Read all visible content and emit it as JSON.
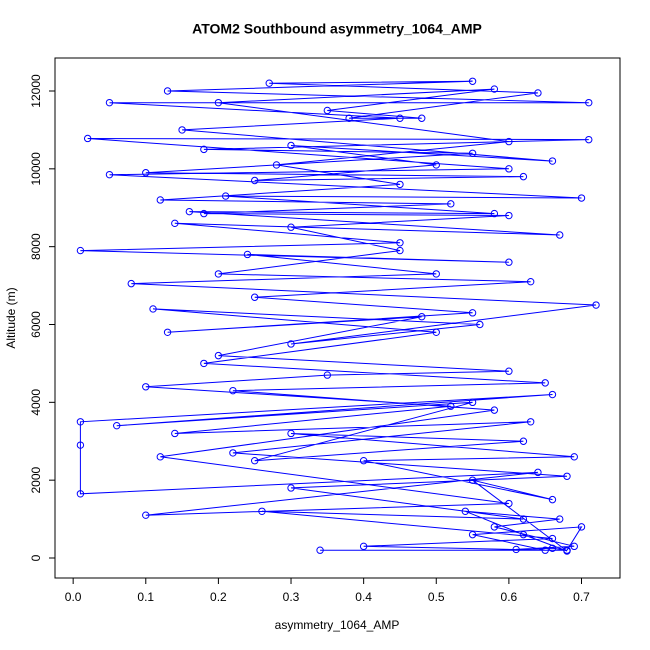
{
  "chart_data": {
    "type": "line",
    "markers": true,
    "title": "ATOM2 Southbound asymmetry_1064_AMP",
    "x_label": "asymmetry_1064_AMP",
    "y_label": "Altitude (m)",
    "color": "#0000ff",
    "xlim": [
      -0.025,
      0.753
    ],
    "ylim": [
      -514,
      12848
    ],
    "xticks": [
      {
        "value": 0,
        "label": "0.0"
      },
      0.1,
      0.2,
      0.3,
      0.4,
      0.5,
      0.6,
      0.7
    ],
    "yticks": [
      0,
      2000,
      4000,
      6000,
      8000,
      10000,
      12000
    ],
    "x": [
      0.34,
      0.68,
      0.66,
      0.61,
      0.69,
      0.58,
      0.67,
      0.54,
      0.62,
      0.68,
      0.55,
      0.66,
      0.4,
      0.69,
      0.3,
      0.62,
      0.25,
      0.55,
      0.06,
      0.66,
      0.01,
      0.01,
      0.01,
      0.64,
      0.1,
      0.6,
      0.12,
      0.58,
      0.22,
      0.65,
      0.18,
      0.5,
      0.11,
      0.56,
      0.3,
      0.72,
      0.08,
      0.5,
      0.24,
      0.6,
      0.01,
      0.45,
      0.14,
      0.67,
      0.16,
      0.58,
      0.21,
      0.7,
      0.05,
      0.6,
      0.02,
      0.71,
      0.18,
      0.55,
      0.1,
      0.62,
      0.25,
      0.5,
      0.3,
      0.66,
      0.15,
      0.45,
      0.05,
      0.71,
      0.13,
      0.55,
      0.27,
      0.64,
      0.38,
      0.48,
      0.35,
      0.58,
      0.2,
      0.6,
      0.28,
      0.45,
      0.12,
      0.52,
      0.18,
      0.6,
      0.3,
      0.45,
      0.2,
      0.63,
      0.25,
      0.55,
      0.13,
      0.48,
      0.2,
      0.6,
      0.35,
      0.1,
      0.52,
      0.14,
      0.63,
      0.22,
      0.68,
      0.3,
      0.62,
      0.26,
      0.66,
      0.4,
      0.65,
      0.55,
      0.7,
      0.68
    ],
    "values": [
      200,
      200,
      250,
      220,
      300,
      800,
      1000,
      1200,
      600,
      180,
      2000,
      1500,
      2500,
      2600,
      3200,
      3000,
      2500,
      4000,
      3400,
      4200,
      3500,
      2900,
      1650,
      2200,
      1100,
      1400,
      2600,
      3800,
      4300,
      4500,
      5000,
      5800,
      6400,
      6000,
      5500,
      6500,
      7050,
      7300,
      7800,
      7600,
      7900,
      8100,
      8600,
      8300,
      8900,
      8850,
      9300,
      9250,
      9850,
      10000,
      10780,
      10750,
      10500,
      10400,
      9900,
      9800,
      9700,
      10100,
      10600,
      10200,
      11000,
      11300,
      11700,
      11700,
      12000,
      12250,
      12200,
      11950,
      11300,
      11300,
      11500,
      12050,
      11700,
      10700,
      10100,
      9600,
      9200,
      9100,
      8850,
      8800,
      8500,
      7900,
      7300,
      7100,
      6700,
      6300,
      5800,
      6200,
      5200,
      4800,
      4700,
      4400,
      3900,
      3200,
      3500,
      2700,
      2100,
      1800,
      1000,
      1200,
      500,
      300,
      200,
      600,
      800,
      200
    ]
  }
}
